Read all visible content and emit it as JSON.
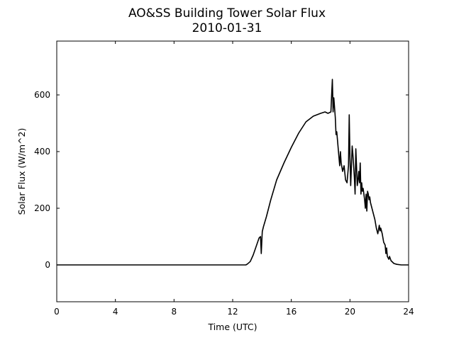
{
  "chart_data": {
    "type": "line",
    "title": "AO&SS Building Tower Solar Flux",
    "subtitle": "2010-01-31",
    "xlabel": "Time (UTC)",
    "ylabel": "Solar Flux (W/m^2)",
    "xlim": [
      0,
      24
    ],
    "ylim": [
      -130,
      790
    ],
    "x_ticks": [
      0,
      4,
      8,
      12,
      16,
      20,
      24
    ],
    "y_ticks": [
      0,
      200,
      400,
      600
    ],
    "grid": false,
    "legend": "none",
    "series": [
      {
        "color": "#000000",
        "x": [
          0,
          12.9,
          13.0,
          13.2,
          13.4,
          13.6,
          13.8,
          13.9,
          13.95,
          14.0,
          14.02,
          14.1,
          14.3,
          14.6,
          15.0,
          15.5,
          16.0,
          16.5,
          17.0,
          17.5,
          18.0,
          18.3,
          18.5,
          18.7,
          18.75,
          18.8,
          18.85,
          18.9,
          19.0,
          19.05,
          19.1,
          19.2,
          19.25,
          19.3,
          19.35,
          19.4,
          19.5,
          19.6,
          19.7,
          19.8,
          19.9,
          19.95,
          20.0,
          20.05,
          20.1,
          20.15,
          20.2,
          20.3,
          20.35,
          20.4,
          20.5,
          20.55,
          20.6,
          20.65,
          20.7,
          20.75,
          20.8,
          20.85,
          20.9,
          21.0,
          21.05,
          21.1,
          21.15,
          21.2,
          21.25,
          21.3,
          21.35,
          21.4,
          21.5,
          21.6,
          21.7,
          21.8,
          21.9,
          22.0,
          22.05,
          22.1,
          22.2,
          22.3,
          22.4,
          22.45,
          22.5,
          22.55,
          22.6,
          22.65,
          22.7,
          22.8,
          22.9,
          23.0,
          23.2,
          23.5,
          24.0
        ],
        "y": [
          0,
          0,
          3,
          12,
          35,
          65,
          95,
          100,
          40,
          98,
          118,
          135,
          170,
          230,
          300,
          360,
          415,
          465,
          505,
          525,
          535,
          540,
          535,
          540,
          600,
          655,
          540,
          590,
          520,
          460,
          470,
          410,
          380,
          350,
          400,
          360,
          330,
          350,
          300,
          290,
          350,
          530,
          380,
          280,
          350,
          420,
          390,
          310,
          250,
          410,
          280,
          300,
          330,
          290,
          360,
          250,
          290,
          260,
          270,
          230,
          200,
          250,
          190,
          260,
          250,
          230,
          240,
          220,
          200,
          180,
          160,
          130,
          110,
          140,
          120,
          130,
          110,
          80,
          70,
          40,
          60,
          30,
          25,
          20,
          30,
          15,
          10,
          5,
          2,
          0,
          0
        ]
      }
    ]
  }
}
